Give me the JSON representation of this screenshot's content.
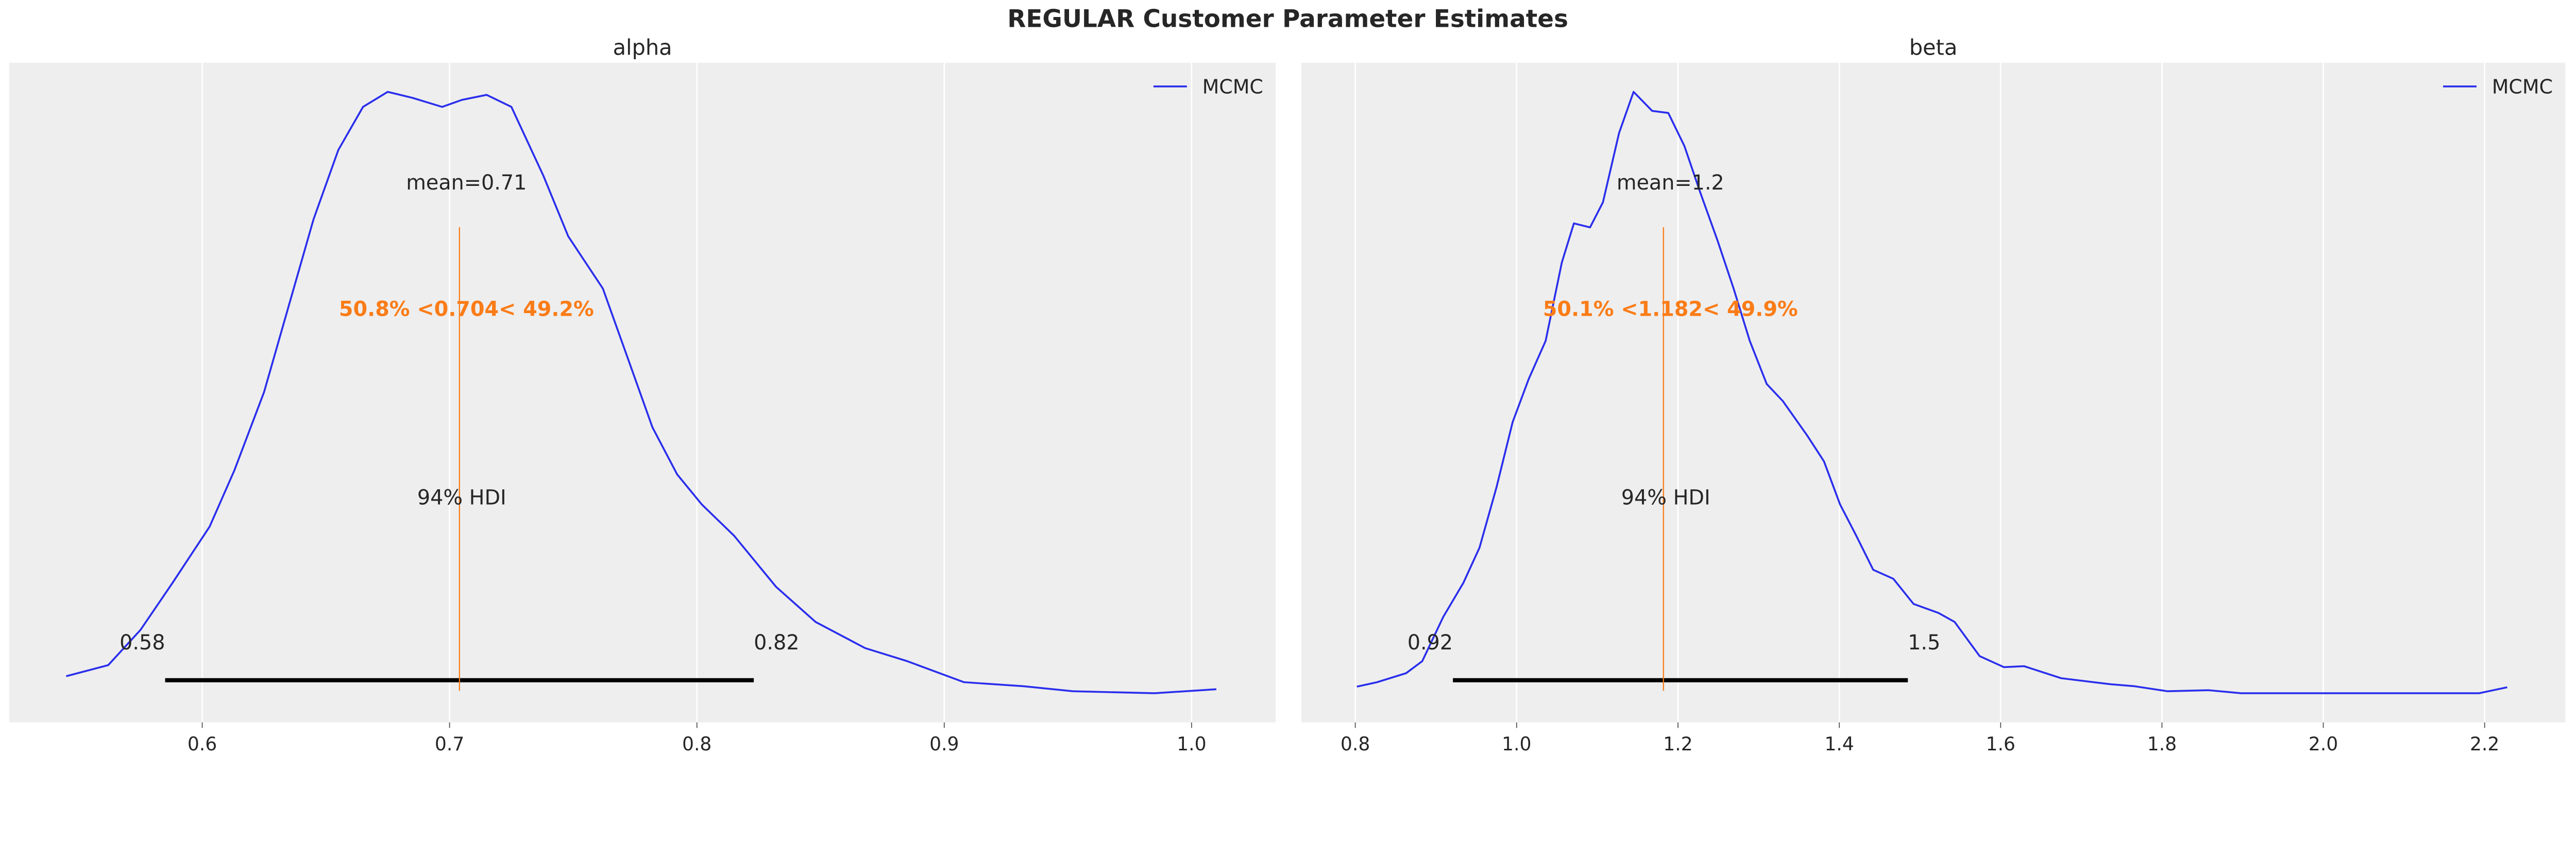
{
  "chart_data": {
    "title": "REGULAR Customer Parameter Estimates",
    "colors": {
      "background": "#eeeeee",
      "grid": "#ffffff",
      "kde": "#2a2eec",
      "reference": "#fa7c17",
      "hdi": "#000000"
    },
    "panels": [
      {
        "type": "line",
        "title": "alpha",
        "legend": {
          "label": "MCMC",
          "placement": "top-right"
        },
        "xlim": [
          0.522,
          1.034
        ],
        "ylim": [
          -0.27,
          6.3
        ],
        "xticks": [
          0.6,
          0.7,
          0.8,
          0.9,
          1.0
        ],
        "xtick_labels": [
          "0.6",
          "0.7",
          "0.8",
          "0.9",
          "1.0"
        ],
        "grid": "vertical",
        "mean_label": "mean=0.71",
        "reference_value": 0.704,
        "reference_label": "50.8% <0.704< 49.2%",
        "hdi_label": "94% HDI",
        "hdi": [
          0.585,
          0.823
        ],
        "hdi_labels": [
          "0.58",
          "0.82"
        ],
        "x": [
          0.545,
          0.562,
          0.575,
          0.588,
          0.603,
          0.613,
          0.625,
          0.635,
          0.645,
          0.655,
          0.665,
          0.675,
          0.685,
          0.697,
          0.705,
          0.715,
          0.725,
          0.738,
          0.748,
          0.762,
          0.772,
          0.782,
          0.792,
          0.802,
          0.815,
          0.832,
          0.848,
          0.868,
          0.885,
          0.908,
          0.932,
          0.952,
          0.985,
          1.01
        ],
        "y": [
          0.19,
          0.3,
          0.65,
          1.12,
          1.68,
          2.24,
          3.02,
          3.88,
          4.74,
          5.43,
          5.86,
          6.01,
          5.95,
          5.86,
          5.93,
          5.98,
          5.86,
          5.17,
          4.57,
          4.05,
          3.36,
          2.67,
          2.2,
          1.9,
          1.59,
          1.08,
          0.73,
          0.47,
          0.34,
          0.13,
          0.09,
          0.04,
          0.02,
          0.06
        ]
      },
      {
        "type": "line",
        "title": "beta",
        "legend": {
          "label": "MCMC",
          "placement": "top-right"
        },
        "xlim": [
          0.733,
          2.3
        ],
        "ylim": [
          -0.27,
          6.3
        ],
        "xticks": [
          0.8,
          1.0,
          1.2,
          1.4,
          1.6,
          1.8,
          2.0,
          2.2
        ],
        "xtick_labels": [
          "0.8",
          "1.0",
          "1.2",
          "1.4",
          "1.6",
          "1.8",
          "2.0",
          "2.2"
        ],
        "grid": "vertical",
        "mean_label": "mean=1.2",
        "reference_value": 1.182,
        "reference_label": "50.1% <1.182< 49.9%",
        "hdi_label": "94% HDI",
        "hdi": [
          0.921,
          1.485
        ],
        "hdi_labels": [
          "0.92",
          "1.5"
        ],
        "x": [
          0.802,
          0.827,
          0.863,
          0.883,
          0.909,
          0.934,
          0.954,
          0.975,
          0.995,
          1.015,
          1.036,
          1.056,
          1.071,
          1.091,
          1.107,
          1.127,
          1.145,
          1.168,
          1.188,
          1.208,
          1.228,
          1.249,
          1.269,
          1.289,
          1.31,
          1.33,
          1.36,
          1.381,
          1.401,
          1.421,
          1.442,
          1.467,
          1.492,
          1.523,
          1.543,
          1.574,
          1.604,
          1.629,
          1.675,
          1.736,
          1.766,
          1.807,
          1.858,
          1.898,
          2.193,
          2.228
        ],
        "y": [
          0.086,
          0.13,
          0.22,
          0.34,
          0.78,
          1.12,
          1.47,
          2.07,
          2.72,
          3.15,
          3.53,
          4.31,
          4.7,
          4.66,
          4.91,
          5.6,
          6.01,
          5.82,
          5.8,
          5.47,
          5.0,
          4.53,
          4.05,
          3.53,
          3.1,
          2.93,
          2.59,
          2.33,
          1.9,
          1.59,
          1.25,
          1.16,
          0.91,
          0.82,
          0.73,
          0.39,
          0.28,
          0.29,
          0.17,
          0.11,
          0.09,
          0.04,
          0.05,
          0.02,
          0.02,
          0.08
        ]
      }
    ]
  }
}
